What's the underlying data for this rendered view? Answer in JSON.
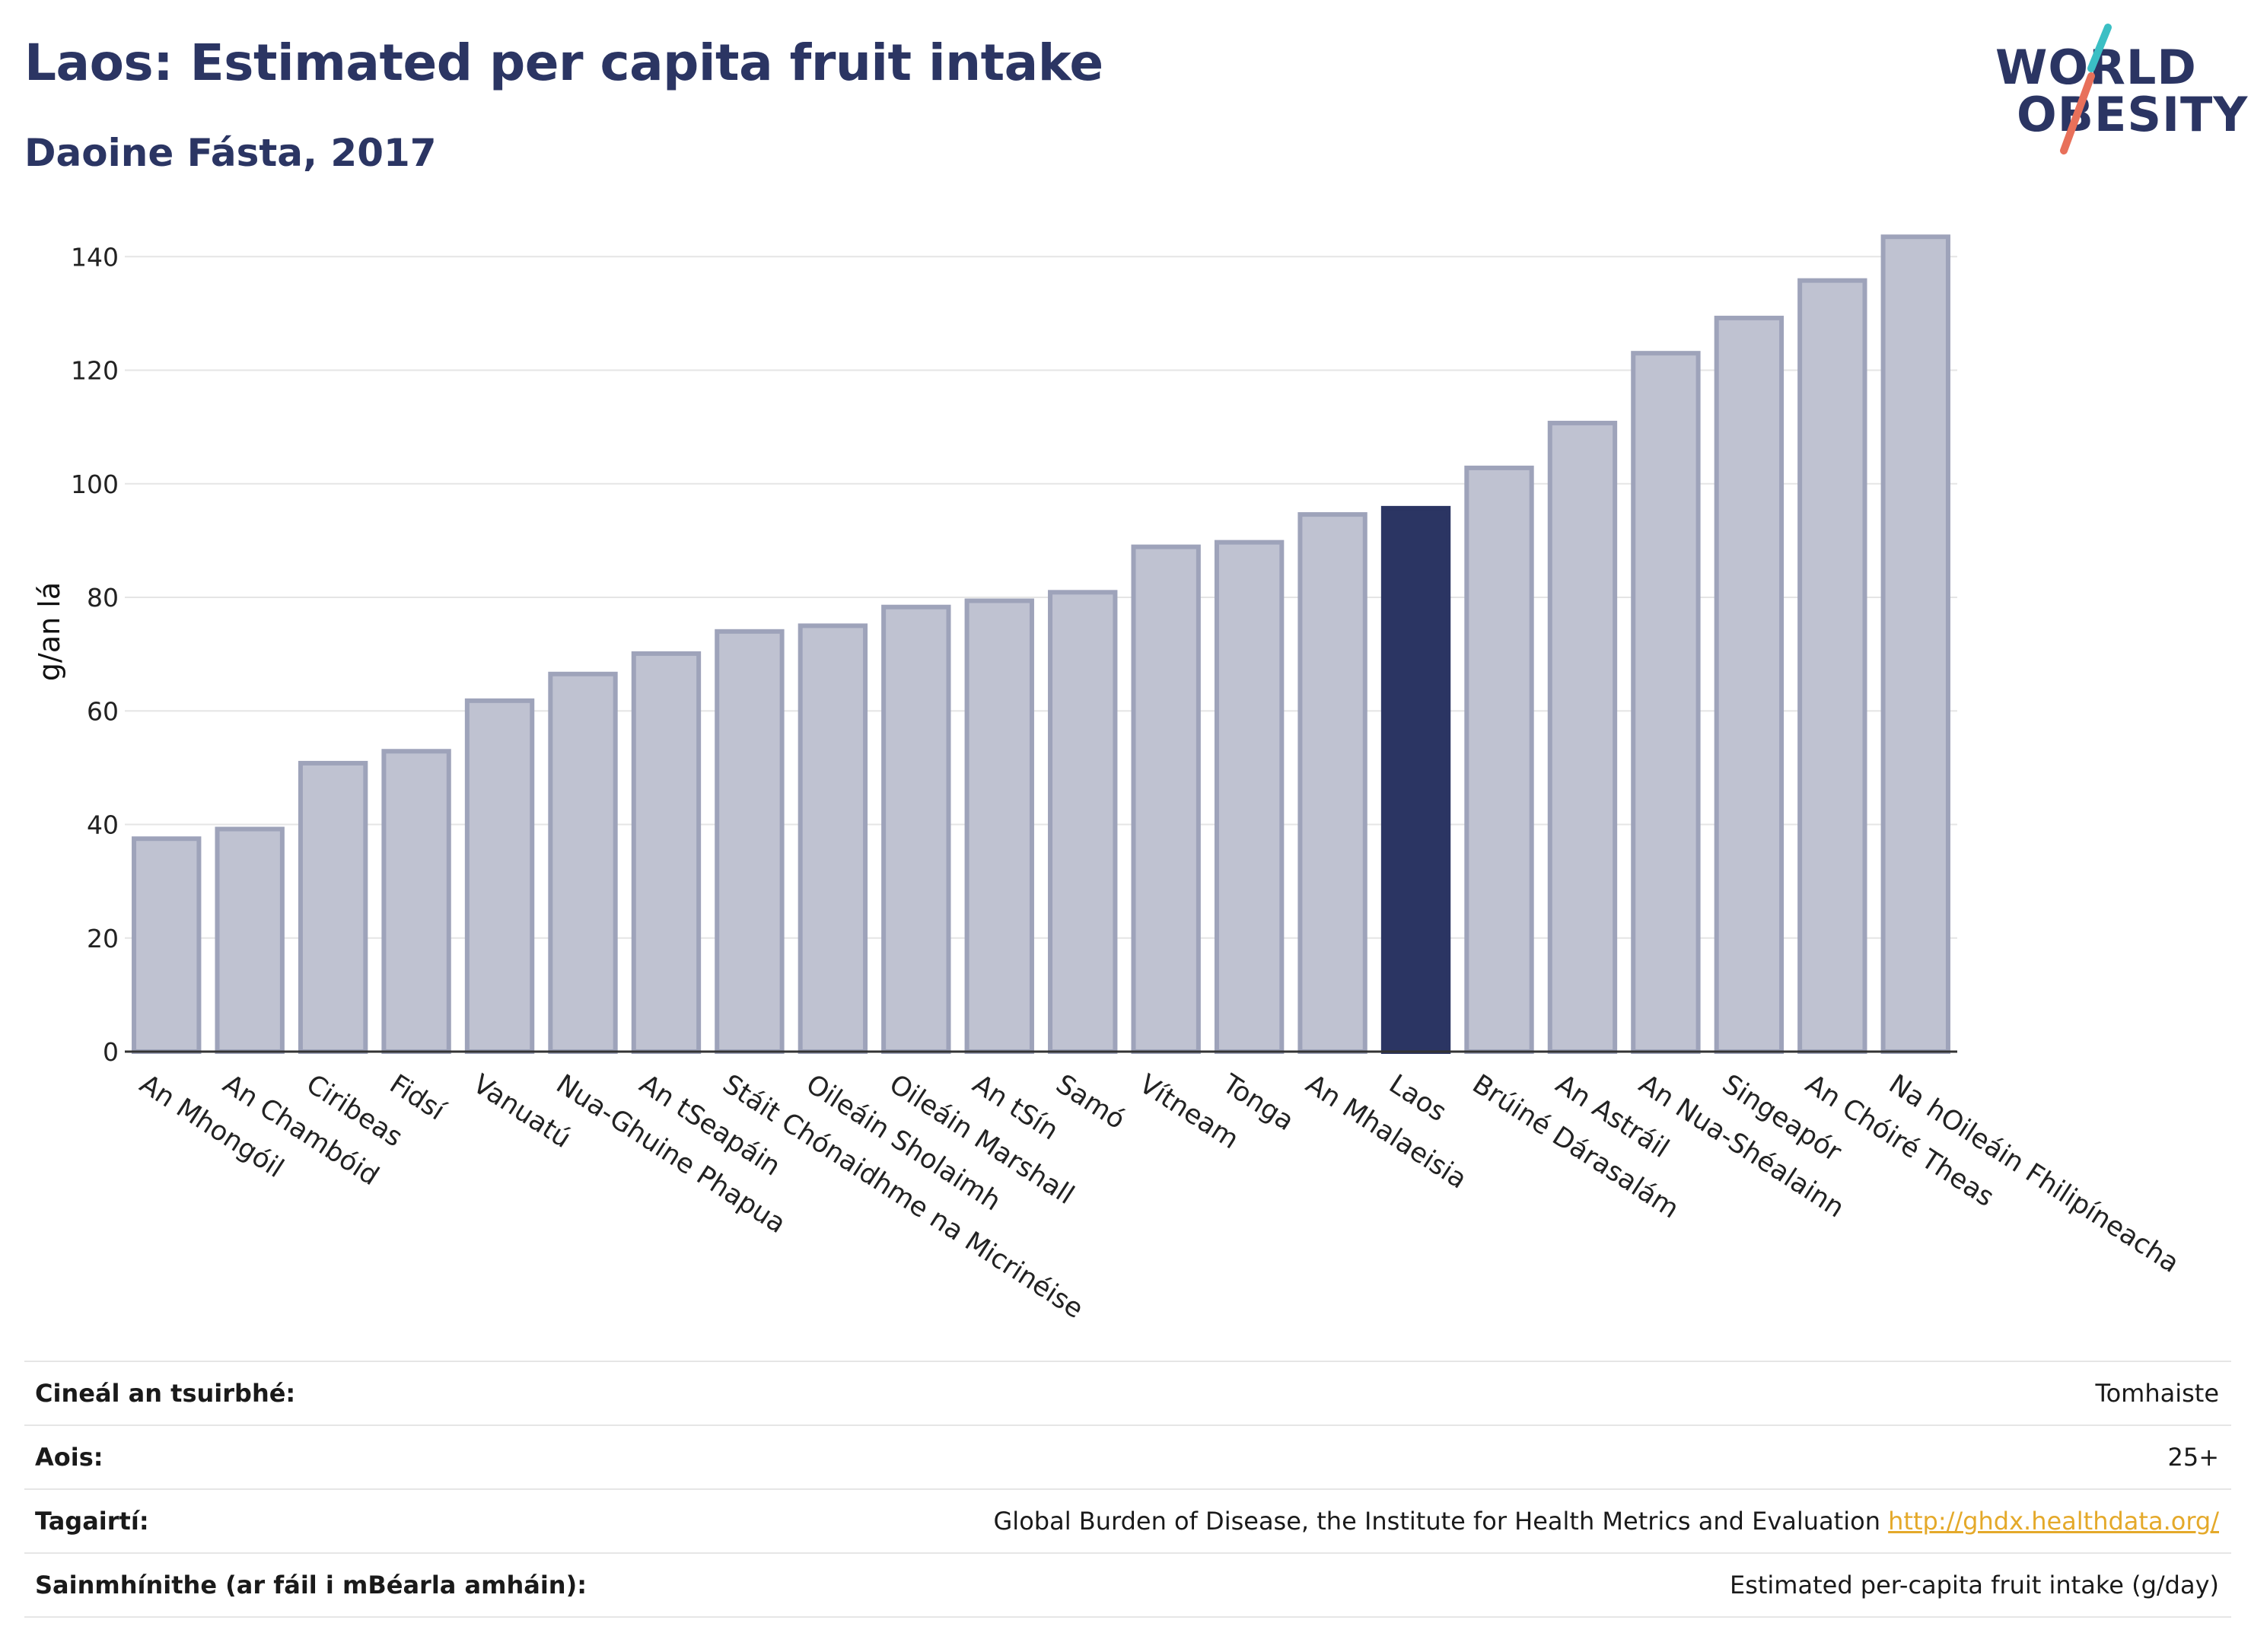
{
  "header": {
    "title": "Laos: Estimated per capita fruit intake",
    "subtitle": "Daoine Fásta, 2017"
  },
  "logo": {
    "line1": "WORLD",
    "line2": "OBESITY",
    "slash_colors": [
      "#3bbfc4",
      "#e8705a"
    ]
  },
  "colors": {
    "bar": "#bfc2d1",
    "bar_edge": "#9ea3ba",
    "highlight": "#2b3563",
    "axis": "#333333",
    "grid": "#e5e5e5"
  },
  "chart_data": {
    "type": "bar",
    "ylabel": "g/an lá",
    "ylim": [
      0,
      145
    ],
    "yticks": [
      0,
      20,
      40,
      60,
      80,
      100,
      120,
      140
    ],
    "grid": true,
    "highlight": "Laos",
    "categories": [
      "An Mhongóil",
      "An Chambóid",
      "Ciribeas",
      "Fidsí",
      "Vanuatú",
      "Nua-Ghuine Phapua",
      "An tSeapáin",
      "Stáit Chónaidhme na Micrinéise",
      "Oileáin Sholaimh",
      "Oileáin Marshall",
      "An tSín",
      "Samó",
      "Vítneam",
      "Tonga",
      "An Mhalaeisia",
      "Laos",
      "Brúiné Dárasalám",
      "An Astráil",
      "An Nua-Shéalainn",
      "Singeapór",
      "An Chóiré Theas",
      "Na hOileáin Fhilipíneacha"
    ],
    "values": [
      37.5,
      39.2,
      50.8,
      52.9,
      61.8,
      66.5,
      70.1,
      74.0,
      75.0,
      78.3,
      79.4,
      80.9,
      88.9,
      89.7,
      94.6,
      95.7,
      102.8,
      110.7,
      123.0,
      129.2,
      135.8,
      143.5
    ]
  },
  "footer": {
    "rows": [
      {
        "key": "Cineál an tsuirbhé:",
        "value": "Tomhaiste"
      },
      {
        "key": "Aois:",
        "value": "25+"
      },
      {
        "key": "Tagairtí:",
        "value": "Global Burden of Disease, the Institute for Health Metrics and Evaluation",
        "link": "http://ghdx.healthdata.org/"
      },
      {
        "key": "Sainmhínithe (ar fáil i mBéarla amháin):",
        "value": "Estimated per-capita fruit intake (g/day)"
      }
    ]
  }
}
